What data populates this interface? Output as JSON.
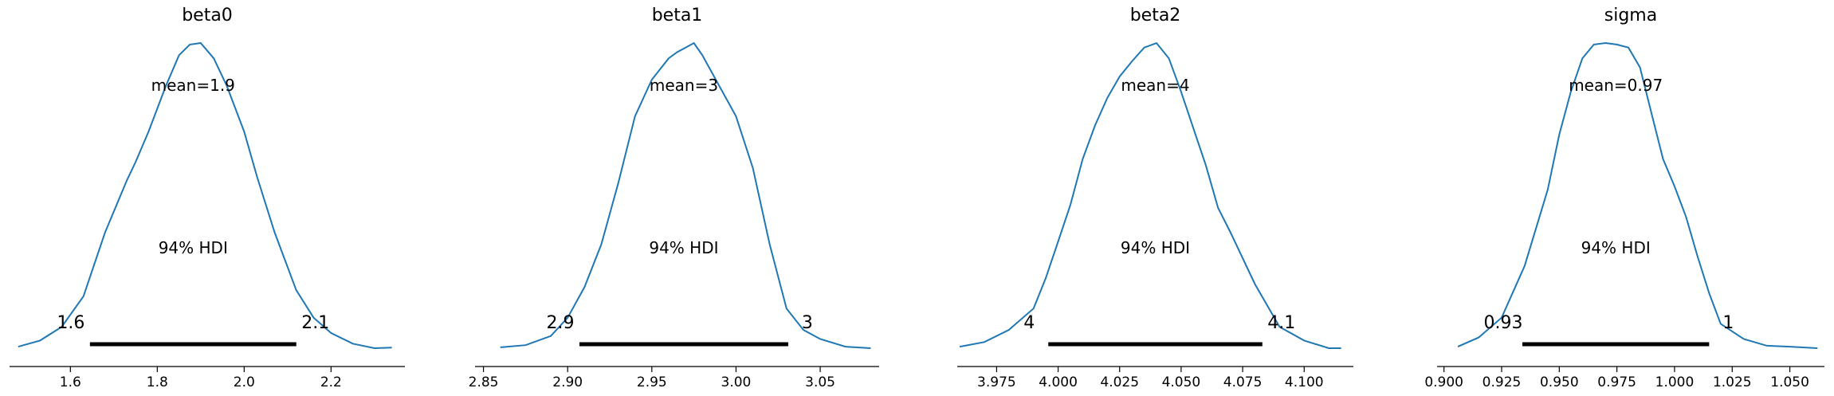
{
  "chart_data": [
    {
      "type": "area",
      "title": "beta0",
      "mean_label": "mean=1.9",
      "hdi_label": "94% HDI",
      "hdi_low_label": "1.6",
      "hdi_high_label": "2.1",
      "hdi": [
        1.645,
        2.12
      ],
      "xlim": [
        1.46,
        2.37
      ],
      "ticks": [
        1.6,
        1.8,
        2.0,
        2.2
      ],
      "tick_labels": [
        "1.6",
        "1.8",
        "2.0",
        "2.2"
      ],
      "x": [
        1.48,
        1.53,
        1.58,
        1.63,
        1.68,
        1.73,
        1.75,
        1.78,
        1.82,
        1.85,
        1.875,
        1.9,
        1.93,
        1.96,
        2.0,
        2.03,
        2.07,
        2.12,
        2.16,
        2.2,
        2.25,
        2.3,
        2.34
      ],
      "density": [
        0.005,
        0.025,
        0.07,
        0.17,
        0.38,
        0.55,
        0.61,
        0.71,
        0.86,
        0.96,
        0.995,
        1.0,
        0.95,
        0.86,
        0.71,
        0.56,
        0.38,
        0.19,
        0.1,
        0.05,
        0.015,
        0.0,
        0.002
      ]
    },
    {
      "type": "area",
      "title": "beta1",
      "mean_label": "mean=3",
      "hdi_label": "94% HDI",
      "hdi_low_label": "2.9",
      "hdi_high_label": "3",
      "hdi": [
        2.907,
        3.031
      ],
      "xlim": [
        2.845,
        3.085
      ],
      "ticks": [
        2.85,
        2.9,
        2.95,
        3.0,
        3.05
      ],
      "tick_labels": [
        "2.85",
        "2.90",
        "2.95",
        "3.00",
        "3.05"
      ],
      "x": [
        2.86,
        2.875,
        2.89,
        2.9,
        2.91,
        2.92,
        2.93,
        2.94,
        2.95,
        2.96,
        2.965,
        2.97,
        2.975,
        2.98,
        2.99,
        3.0,
        3.01,
        3.02,
        3.03,
        3.04,
        3.05,
        3.065,
        3.08
      ],
      "density": [
        0.003,
        0.01,
        0.04,
        0.1,
        0.2,
        0.34,
        0.54,
        0.76,
        0.88,
        0.95,
        0.97,
        0.985,
        1.0,
        0.96,
        0.86,
        0.76,
        0.59,
        0.34,
        0.13,
        0.06,
        0.03,
        0.005,
        0.0
      ]
    },
    {
      "type": "area",
      "title": "beta2",
      "mean_label": "mean=4",
      "hdi_label": "94% HDI",
      "hdi_low_label": "4",
      "hdi_high_label": "4.1",
      "hdi": [
        3.996,
        4.083
      ],
      "xlim": [
        3.959,
        4.12
      ],
      "ticks": [
        3.975,
        4.0,
        4.025,
        4.05,
        4.075,
        4.1
      ],
      "tick_labels": [
        "3.975",
        "4.000",
        "4.025",
        "4.050",
        "4.075",
        "4.100"
      ],
      "x": [
        3.96,
        3.97,
        3.98,
        3.99,
        3.995,
        4.0,
        4.005,
        4.01,
        4.015,
        4.02,
        4.025,
        4.03,
        4.035,
        4.04,
        4.045,
        4.05,
        4.055,
        4.06,
        4.065,
        4.07,
        4.08,
        4.09,
        4.1,
        4.11,
        4.115
      ],
      "density": [
        0.005,
        0.02,
        0.06,
        0.13,
        0.23,
        0.35,
        0.47,
        0.62,
        0.73,
        0.82,
        0.89,
        0.94,
        0.985,
        1.0,
        0.95,
        0.84,
        0.72,
        0.6,
        0.46,
        0.38,
        0.21,
        0.07,
        0.025,
        0.0,
        0.0
      ]
    },
    {
      "type": "area",
      "title": "sigma",
      "mean_label": "mean=0.97",
      "hdi_label": "94% HDI",
      "hdi_low_label": "0.93",
      "hdi_high_label": "1",
      "hdi": [
        0.934,
        1.015
      ],
      "xlim": [
        0.897,
        1.065
      ],
      "ticks": [
        0.9,
        0.925,
        0.95,
        0.975,
        1.0,
        1.025,
        1.05
      ],
      "tick_labels": [
        "0.900",
        "0.925",
        "0.950",
        "0.975",
        "1.000",
        "1.025",
        "1.050"
      ],
      "x": [
        0.906,
        0.915,
        0.925,
        0.935,
        0.945,
        0.95,
        0.955,
        0.96,
        0.965,
        0.97,
        0.975,
        0.98,
        0.985,
        0.99,
        0.995,
        1.0,
        1.005,
        1.01,
        1.015,
        1.02,
        1.03,
        1.04,
        1.05,
        1.062
      ],
      "density": [
        0.005,
        0.035,
        0.1,
        0.27,
        0.52,
        0.7,
        0.84,
        0.95,
        0.995,
        1.0,
        0.995,
        0.985,
        0.92,
        0.77,
        0.62,
        0.53,
        0.43,
        0.3,
        0.18,
        0.08,
        0.03,
        0.008,
        0.005,
        0.0
      ]
    }
  ]
}
